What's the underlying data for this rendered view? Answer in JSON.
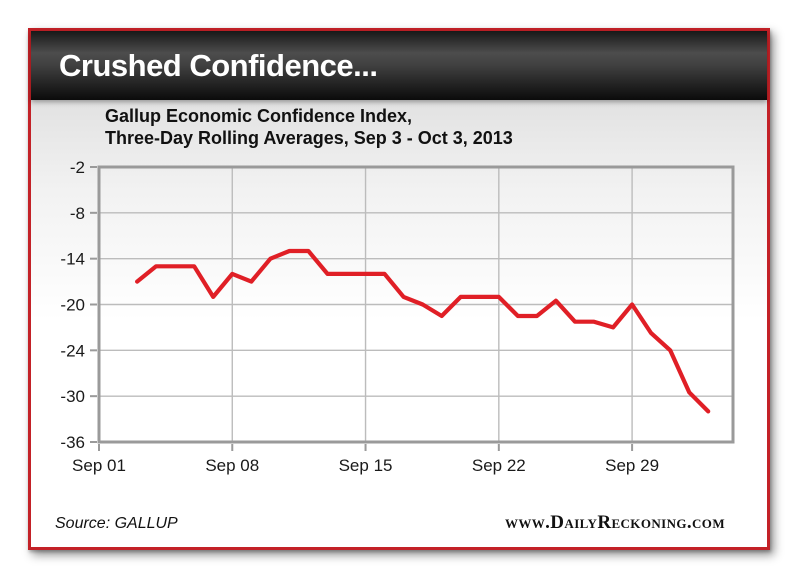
{
  "header": {
    "title": "Crushed Confidence..."
  },
  "chart": {
    "subtitle_line1": "Gallup Economic Confidence Index,",
    "subtitle_line2": "Three-Day Rolling Averages, Sep 3 - Oct 3, 2013"
  },
  "chart_data": {
    "type": "line",
    "title": "Gallup Economic Confidence Index, Three-Day Rolling Averages, Sep 3 - Oct 3, 2013",
    "grid": true,
    "legend": false,
    "line_color": "#e01f26",
    "frame_color": "#c32127",
    "x_tick_labels": [
      "Sep 01",
      "Sep 08",
      "Sep 15",
      "Sep 22",
      "Sep 29"
    ],
    "x_tick_days": [
      0,
      7,
      14,
      21,
      28
    ],
    "x_domain_days": [
      0,
      33.3
    ],
    "y_tick_labels": [
      "-2",
      "-8",
      "-14",
      "-20",
      "-24",
      "-30",
      "-36"
    ],
    "y_tick_values": [
      -2,
      -8,
      -14,
      -20,
      -24,
      -30,
      -36
    ],
    "ylim": [
      -36,
      -2
    ],
    "series": [
      {
        "name": "Gallup Economic Confidence Index (three-day rolling average)",
        "dates": [
          "Sep 3",
          "Sep 4",
          "Sep 5",
          "Sep 6",
          "Sep 7",
          "Sep 8",
          "Sep 9",
          "Sep 10",
          "Sep 11",
          "Sep 12",
          "Sep 13",
          "Sep 14",
          "Sep 15",
          "Sep 16",
          "Sep 17",
          "Sep 18",
          "Sep 19",
          "Sep 20",
          "Sep 21",
          "Sep 22",
          "Sep 23",
          "Sep 24",
          "Sep 25",
          "Sep 26",
          "Sep 27",
          "Sep 28",
          "Sep 29",
          "Sep 30",
          "Oct 1",
          "Oct 2",
          "Oct 3"
        ],
        "x_days": [
          2,
          3,
          4,
          5,
          6,
          7,
          8,
          9,
          10,
          11,
          12,
          13,
          14,
          15,
          16,
          17,
          18,
          19,
          20,
          21,
          22,
          23,
          24,
          25,
          26,
          27,
          28,
          29,
          30,
          31,
          32
        ],
        "values": [
          -17,
          -15,
          -15,
          -15,
          -19,
          -16,
          -17,
          -14,
          -13,
          -13,
          -16,
          -16,
          -16,
          -16,
          -19,
          -20,
          -21,
          -19,
          -19,
          -19,
          -21,
          -21,
          -19.5,
          -21.5,
          -21.5,
          -22,
          -20,
          -22.5,
          -24,
          -29.5,
          -32
        ]
      }
    ]
  },
  "footer": {
    "source": "Source: GALLUP",
    "website": "www.DailyReckoning.com"
  }
}
